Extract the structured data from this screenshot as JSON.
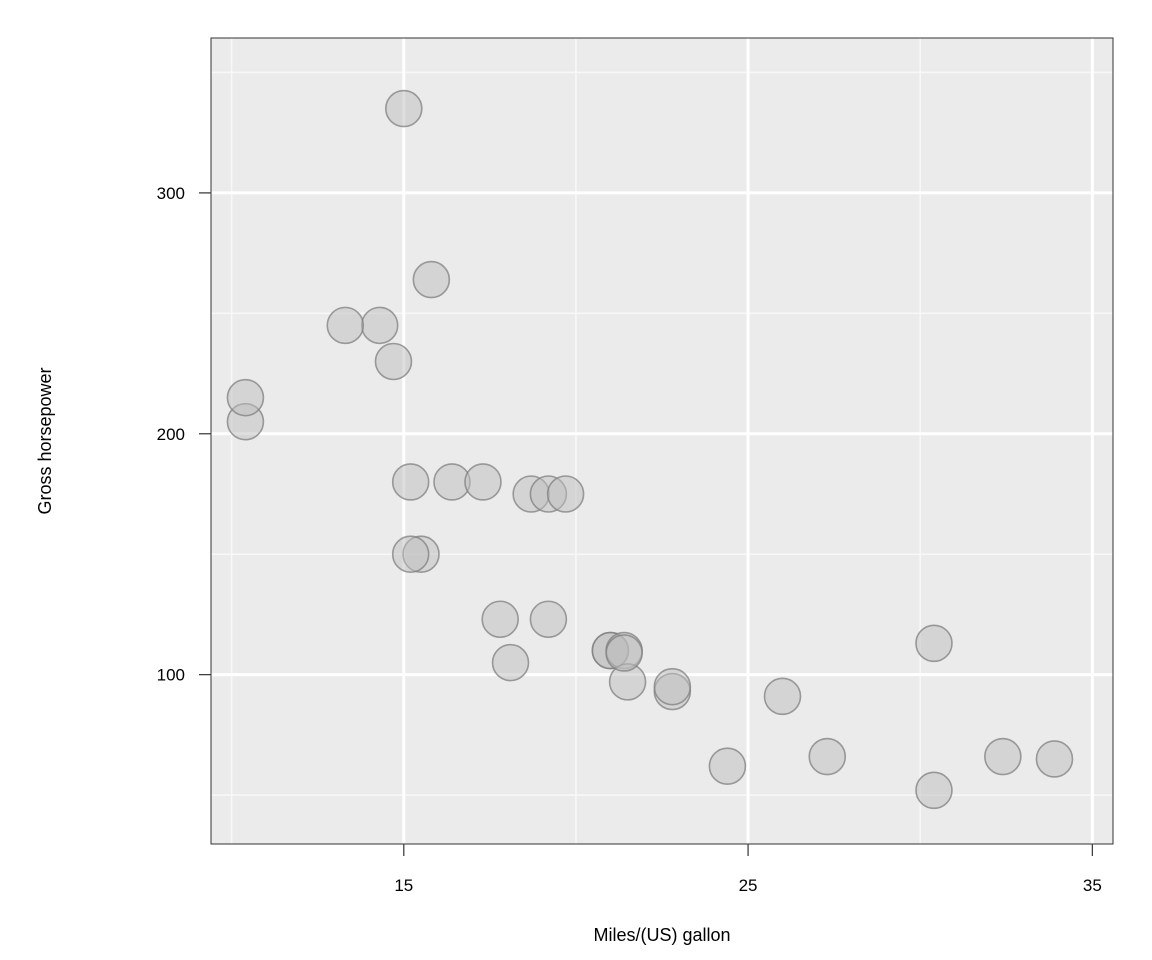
{
  "chart_data": {
    "type": "scatter",
    "title": "",
    "xlabel": "Miles/(US) gallon",
    "ylabel": "Gross horsepower",
    "xlim": [
      9.4,
      35.6
    ],
    "ylim": [
      29.7,
      364.3
    ],
    "x_ticks": [
      15,
      25,
      35
    ],
    "y_ticks": [
      100,
      200,
      300
    ],
    "x_minor_grid": [
      10,
      20,
      30
    ],
    "y_minor_grid": [
      50,
      150,
      250,
      350
    ],
    "grid": true,
    "legend": "none",
    "colors": {
      "panel_background": "#ebebeb",
      "grid_major": "#ffffff",
      "grid_minor": "#f7f7f7",
      "point_fill": "#bebebe",
      "point_stroke": "#7f7f7f"
    },
    "points": [
      {
        "x": 21.0,
        "y": 110
      },
      {
        "x": 21.0,
        "y": 110
      },
      {
        "x": 22.8,
        "y": 93
      },
      {
        "x": 21.4,
        "y": 110
      },
      {
        "x": 18.7,
        "y": 175
      },
      {
        "x": 18.1,
        "y": 105
      },
      {
        "x": 14.3,
        "y": 245
      },
      {
        "x": 24.4,
        "y": 62
      },
      {
        "x": 22.8,
        "y": 95
      },
      {
        "x": 19.2,
        "y": 123
      },
      {
        "x": 17.8,
        "y": 123
      },
      {
        "x": 16.4,
        "y": 180
      },
      {
        "x": 17.3,
        "y": 180
      },
      {
        "x": 15.2,
        "y": 180
      },
      {
        "x": 10.4,
        "y": 205
      },
      {
        "x": 10.4,
        "y": 215
      },
      {
        "x": 14.7,
        "y": 230
      },
      {
        "x": 32.4,
        "y": 66
      },
      {
        "x": 30.4,
        "y": 52
      },
      {
        "x": 33.9,
        "y": 65
      },
      {
        "x": 21.5,
        "y": 97
      },
      {
        "x": 15.5,
        "y": 150
      },
      {
        "x": 15.2,
        "y": 150
      },
      {
        "x": 13.3,
        "y": 245
      },
      {
        "x": 19.2,
        "y": 175
      },
      {
        "x": 27.3,
        "y": 66
      },
      {
        "x": 26.0,
        "y": 91
      },
      {
        "x": 30.4,
        "y": 113
      },
      {
        "x": 15.8,
        "y": 264
      },
      {
        "x": 19.7,
        "y": 175
      },
      {
        "x": 15.0,
        "y": 335
      },
      {
        "x": 21.4,
        "y": 109
      }
    ]
  }
}
